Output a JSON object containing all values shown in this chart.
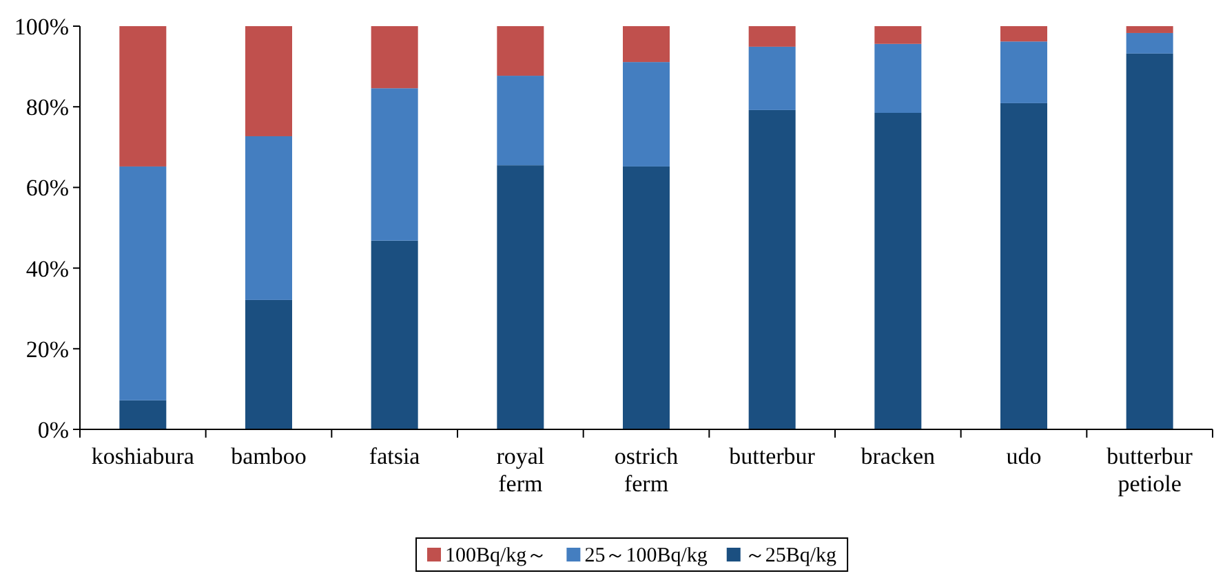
{
  "chart_data": {
    "type": "bar",
    "stacked": true,
    "categories": [
      "koshiabura",
      "bamboo",
      "fatsia",
      "royal ferm",
      "ostrich ferm",
      "butterbur",
      "bracken",
      "udo",
      "butterbur petiole"
    ],
    "series": [
      {
        "name": "～25Bq/kg",
        "color": "#1b4f80",
        "values": [
          7.2,
          32.1,
          46.8,
          65.5,
          65.2,
          79.2,
          78.5,
          80.9,
          93.2
        ]
      },
      {
        "name": "25～100Bq/kg",
        "color": "#447ec0",
        "values": [
          58.0,
          40.6,
          37.8,
          22.2,
          25.9,
          15.7,
          17.1,
          15.3,
          5.1
        ]
      },
      {
        "name": "100Bq/kg～",
        "color": "#c0504d",
        "values": [
          34.8,
          27.3,
          15.4,
          12.3,
          8.9,
          5.1,
          4.4,
          3.8,
          1.7
        ]
      }
    ],
    "ylim": [
      0,
      100
    ],
    "yticks": [
      {
        "value": 0,
        "label": "0%"
      },
      {
        "value": 20,
        "label": "20%"
      },
      {
        "value": 40,
        "label": "40%"
      },
      {
        "value": 60,
        "label": "60%"
      },
      {
        "value": 80,
        "label": "80%"
      },
      {
        "value": 100,
        "label": "100%"
      }
    ],
    "legend": "bottom"
  }
}
